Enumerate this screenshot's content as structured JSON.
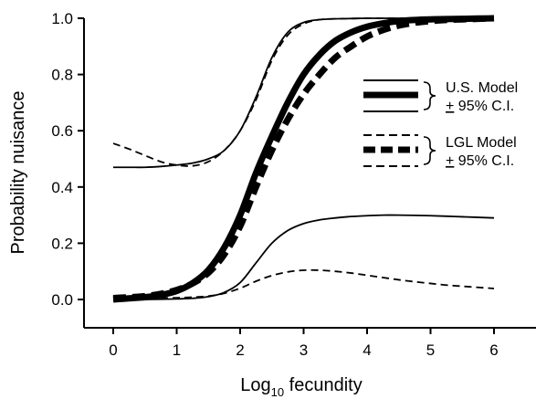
{
  "chart_data": {
    "type": "line",
    "xlabel_main": "Log",
    "xlabel_sub": "10",
    "xlabel_rest": " fecundity",
    "ylabel": "Probability nuisance",
    "xlim": [
      -0.5,
      6.6
    ],
    "ylim": [
      -0.1,
      1.0
    ],
    "xticks": [
      0,
      1,
      2,
      3,
      4,
      5,
      6
    ],
    "yticks": [
      0.0,
      0.2,
      0.4,
      0.6,
      0.8,
      1.0
    ],
    "ytick_labels": [
      "0.0",
      "0.2",
      "0.4",
      "0.6",
      "0.8",
      "1.0"
    ],
    "legend": {
      "position": "right",
      "groups": [
        {
          "line1": "U.S. Model",
          "line2_sign": "+",
          "line2_rest": " 95% C.I.",
          "style": "solid"
        },
        {
          "line1": "LGL Model",
          "line2_sign": "+",
          "line2_rest": " 95% C.I.",
          "style": "dashed"
        }
      ]
    },
    "x": [
      0,
      0.25,
      0.5,
      0.75,
      1,
      1.25,
      1.5,
      1.75,
      2,
      2.25,
      2.5,
      2.75,
      3,
      3.25,
      3.5,
      3.75,
      4,
      4.25,
      4.5,
      4.75,
      5,
      5.25,
      5.5,
      5.75,
      6
    ],
    "series": [
      {
        "role": "us_model",
        "style": "solid",
        "weight": "thick",
        "values": [
          0.0,
          0.004,
          0.008,
          0.016,
          0.03,
          0.058,
          0.105,
          0.185,
          0.3,
          0.45,
          0.58,
          0.7,
          0.8,
          0.87,
          0.92,
          0.95,
          0.97,
          0.982,
          0.99,
          0.994,
          0.996,
          0.997,
          0.998,
          0.999,
          1.0
        ]
      },
      {
        "role": "us_ci_upper",
        "style": "solid",
        "weight": "thin",
        "values": [
          0.47,
          0.47,
          0.47,
          0.473,
          0.478,
          0.485,
          0.5,
          0.53,
          0.6,
          0.72,
          0.86,
          0.95,
          0.985,
          0.995,
          0.998,
          0.999,
          1.0,
          1.0,
          1.0,
          1.0,
          1.0,
          1.0,
          1.0,
          1.0,
          1.0
        ]
      },
      {
        "role": "us_ci_lower",
        "style": "solid",
        "weight": "thin",
        "values": [
          0.0,
          0.0,
          0.0,
          0.001,
          0.002,
          0.004,
          0.01,
          0.025,
          0.06,
          0.13,
          0.2,
          0.245,
          0.27,
          0.283,
          0.29,
          0.295,
          0.298,
          0.3,
          0.3,
          0.299,
          0.298,
          0.296,
          0.294,
          0.292,
          0.29
        ]
      },
      {
        "role": "lgl_model",
        "style": "dashed",
        "weight": "thick",
        "values": [
          0.005,
          0.008,
          0.012,
          0.02,
          0.034,
          0.057,
          0.095,
          0.16,
          0.26,
          0.4,
          0.53,
          0.64,
          0.73,
          0.8,
          0.86,
          0.9,
          0.935,
          0.958,
          0.974,
          0.984,
          0.99,
          0.994,
          0.996,
          0.998,
          1.0
        ]
      },
      {
        "role": "lgl_ci_upper",
        "style": "dashed",
        "weight": "thin",
        "values": [
          0.555,
          0.535,
          0.512,
          0.49,
          0.478,
          0.475,
          0.49,
          0.53,
          0.6,
          0.71,
          0.85,
          0.94,
          0.98,
          0.995,
          0.998,
          0.999,
          1.0,
          1.0,
          1.0,
          1.0,
          1.0,
          1.0,
          1.0,
          1.0,
          1.0
        ]
      },
      {
        "role": "lgl_ci_lower",
        "style": "dashed",
        "weight": "thin",
        "values": [
          0.005,
          0.005,
          0.005,
          0.005,
          0.006,
          0.008,
          0.012,
          0.022,
          0.04,
          0.065,
          0.085,
          0.098,
          0.104,
          0.104,
          0.1,
          0.094,
          0.086,
          0.078,
          0.07,
          0.063,
          0.057,
          0.051,
          0.047,
          0.043,
          0.039
        ]
      }
    ],
    "colors": {
      "line": "#000000",
      "background": "#ffffff"
    }
  }
}
